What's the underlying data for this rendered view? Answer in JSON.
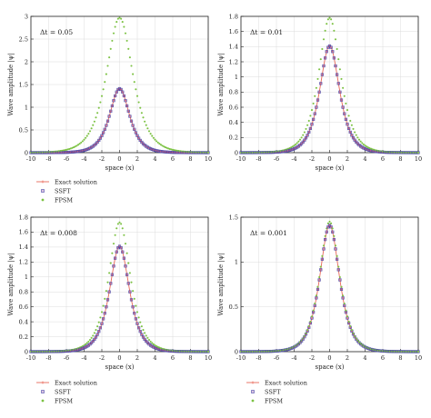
{
  "colors": {
    "exact": "#e8685a",
    "ssft_edge": "#4a4aa8",
    "ssft_fill": "#9a4fa8",
    "fpsm": "#7cc243",
    "axis": "#222222",
    "grid": "#dcdcdc"
  },
  "chart_data": [
    {
      "type": "line",
      "annotation": "Δt = 0.05",
      "xlabel": "space (x)",
      "ylabel": "Wave amplitude |ψ|",
      "xlim": [
        -10,
        10
      ],
      "ylim": [
        0,
        3
      ],
      "xticks": [
        "-10",
        "-8",
        "-6",
        "-4",
        "-2",
        "0",
        "2",
        "4",
        "6",
        "8",
        "10"
      ],
      "yticks": [
        "0",
        "0.5",
        "1",
        "1.5",
        "2",
        "2.5",
        "3"
      ],
      "yticks_values": [
        0,
        0.5,
        1,
        1.5,
        2,
        2.5,
        3
      ],
      "grid": true,
      "legend": "below",
      "series": [
        {
          "name": "Exact solution",
          "peak": 1.41,
          "width": 1.0
        },
        {
          "name": "SSFT",
          "peak": 1.41,
          "width": 1.0
        },
        {
          "name": "FPSM",
          "peak": 2.97,
          "width": 1.32
        }
      ]
    },
    {
      "type": "line",
      "annotation": "Δt = 0.01",
      "xlabel": "space (x)",
      "ylabel": "Wave amplitude |ψ|",
      "xlim": [
        -10,
        10
      ],
      "ylim": [
        0,
        1.8
      ],
      "xticks": [
        "-10",
        "-8",
        "-6",
        "-4",
        "-2",
        "0",
        "2",
        "4",
        "6",
        "8",
        "10"
      ],
      "yticks": [
        "0",
        "0.2",
        "0.4",
        "0.6",
        "0.8",
        "1",
        "1.2",
        "1.4",
        "1.6",
        "1.8"
      ],
      "yticks_values": [
        0,
        0.2,
        0.4,
        0.6,
        0.8,
        1,
        1.2,
        1.4,
        1.6,
        1.8
      ],
      "grid": true,
      "legend": "none",
      "series": [
        {
          "name": "Exact solution",
          "peak": 1.41,
          "width": 1.0
        },
        {
          "name": "SSFT",
          "peak": 1.41,
          "width": 1.0
        },
        {
          "name": "FPSM",
          "peak": 1.78,
          "width": 1.1
        }
      ]
    },
    {
      "type": "line",
      "annotation": "Δt = 0.008",
      "xlabel": "space (x)",
      "ylabel": "Wave amplitude |ψ|",
      "xlim": [
        -10,
        10
      ],
      "ylim": [
        0,
        1.8
      ],
      "xticks": [
        "-10",
        "-8",
        "-6",
        "-4",
        "-2",
        "0",
        "2",
        "4",
        "6",
        "8",
        "10"
      ],
      "yticks": [
        "0",
        "0.2",
        "0.4",
        "0.6",
        "0.8",
        "1",
        "1.2",
        "1.4",
        "1.6",
        "1.8"
      ],
      "yticks_values": [
        0,
        0.2,
        0.4,
        0.6,
        0.8,
        1,
        1.2,
        1.4,
        1.6,
        1.8
      ],
      "grid": true,
      "legend": "below",
      "series": [
        {
          "name": "Exact solution",
          "peak": 1.41,
          "width": 1.0
        },
        {
          "name": "SSFT",
          "peak": 1.41,
          "width": 1.0
        },
        {
          "name": "FPSM",
          "peak": 1.73,
          "width": 1.08
        }
      ]
    },
    {
      "type": "line",
      "annotation": "Δt = 0.001",
      "xlabel": "space (x)",
      "ylabel": "Wave amplitude |ψ|",
      "xlim": [
        -10,
        10
      ],
      "ylim": [
        0,
        1.5
      ],
      "xticks": [
        "-10",
        "-8",
        "-6",
        "-4",
        "-2",
        "0",
        "2",
        "4",
        "6",
        "8",
        "10"
      ],
      "yticks": [
        "0",
        "0.5",
        "1",
        "1.5"
      ],
      "yticks_values": [
        0,
        0.5,
        1,
        1.5
      ],
      "grid": true,
      "legend": "below",
      "series": [
        {
          "name": "Exact solution",
          "peak": 1.41,
          "width": 1.0
        },
        {
          "name": "SSFT",
          "peak": 1.41,
          "width": 1.0
        },
        {
          "name": "FPSM",
          "peak": 1.45,
          "width": 1.01
        }
      ]
    }
  ]
}
